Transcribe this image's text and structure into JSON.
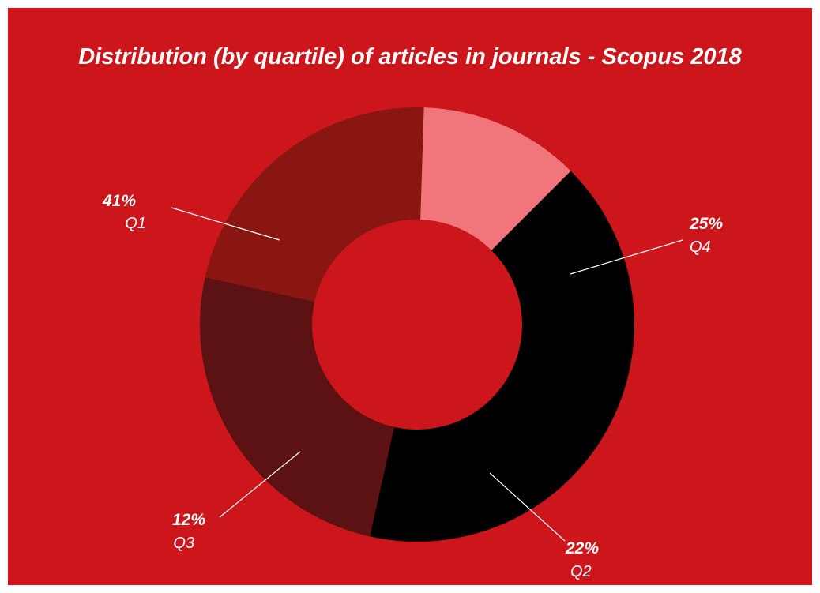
{
  "chart_data": {
    "type": "pie",
    "title": "Distribution (by quartile) of articles in journals - Scopus 2018",
    "categories": [
      "Q1",
      "Q4",
      "Q2",
      "Q3"
    ],
    "values": [
      41,
      25,
      22,
      12
    ],
    "value_labels": [
      "41%",
      "25%",
      "22%",
      "12%"
    ],
    "colors": [
      "#000000",
      "#5c1212",
      "#8a1612",
      "#f0767b"
    ],
    "background": "#cc161b",
    "donut": true
  }
}
